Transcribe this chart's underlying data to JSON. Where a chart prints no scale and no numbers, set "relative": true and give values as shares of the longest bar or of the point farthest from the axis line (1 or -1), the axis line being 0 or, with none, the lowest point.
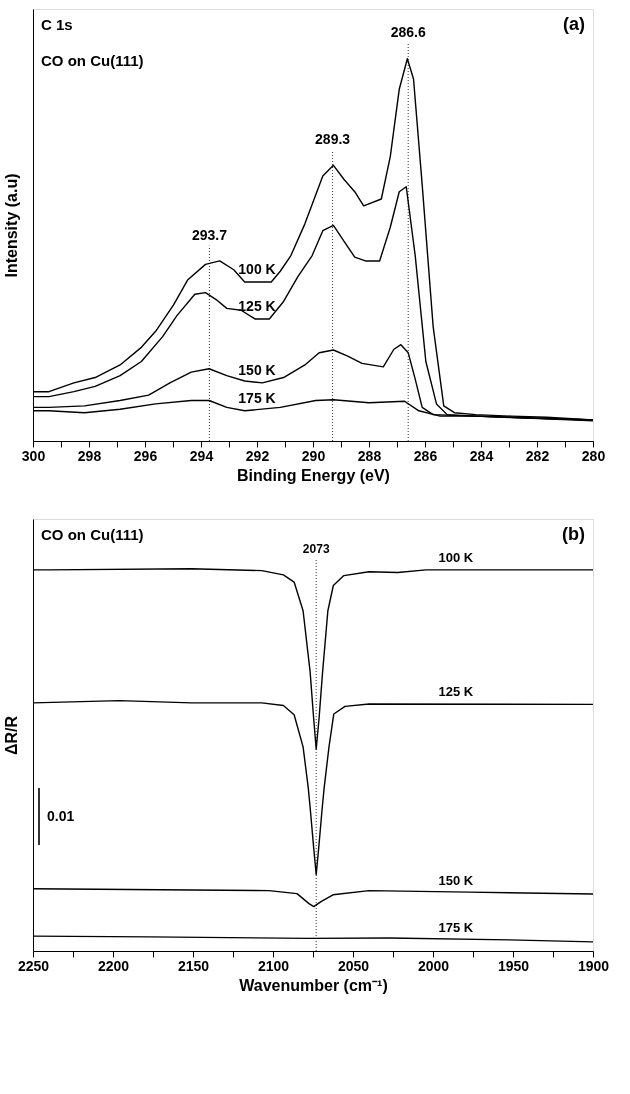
{
  "chart_data": [
    {
      "type": "line",
      "relative": true,
      "xlabel": "Binding Energy (eV)",
      "ylabel": "Intensity (a.u)",
      "tick_labels": "x",
      "xlim": [
        300,
        280
      ],
      "xticks": [
        300,
        {
          "value": 299,
          "label": null
        },
        298,
        {
          "value": 297,
          "label": null
        },
        296,
        {
          "value": 295,
          "label": null
        },
        294,
        {
          "value": 293,
          "label": null
        },
        292,
        {
          "value": 291,
          "label": null
        },
        290,
        {
          "value": 289,
          "label": null
        },
        288,
        {
          "value": 287,
          "label": null
        },
        286,
        {
          "value": 285,
          "label": null
        },
        284,
        {
          "value": 283,
          "label": null
        },
        282,
        {
          "value": 281,
          "label": null
        },
        280
      ],
      "annotations": [
        "C 1s",
        "CO on Cu(111)",
        "(a)"
      ],
      "ref_lines": [
        {
          "axis": "x",
          "value": 293.7,
          "label": "293.7",
          "line_style": "dotted"
        },
        {
          "axis": "x",
          "value": 289.3,
          "label": "289.3",
          "line_style": "dotted"
        },
        {
          "axis": "x",
          "value": 286.6,
          "label": "286.6",
          "line_style": "dotted"
        }
      ],
      "series": [
        {
          "name": "100 K",
          "color": "#000000",
          "x": [
            300,
            299.43,
            298.54,
            297.78,
            296.89,
            296.13,
            295.62,
            294.98,
            294.48,
            293.84,
            293.33,
            292.83,
            292.44,
            291.81,
            291.49,
            291.17,
            290.79,
            290.29,
            289.65,
            289.27,
            288.89,
            288.51,
            288.19,
            287.56,
            287.24,
            286.92,
            286.63,
            286.41,
            286.1,
            285.71,
            285.33,
            284.95,
            284.19,
            282.92,
            281.65,
            280
          ],
          "values": [
            0.129,
            0.129,
            0.152,
            0.166,
            0.199,
            0.245,
            0.287,
            0.356,
            0.421,
            0.462,
            0.471,
            0.448,
            0.416,
            0.416,
            0.416,
            0.444,
            0.485,
            0.568,
            0.693,
            0.721,
            0.684,
            0.652,
            0.615,
            0.633,
            0.744,
            0.92,
            1.0,
            0.947,
            0.67,
            0.3,
            0.092,
            0.074,
            0.069,
            0.065,
            0.062,
            0.055
          ]
        },
        {
          "name": "125 K",
          "color": "#000000",
          "x": [
            300,
            299.43,
            298.54,
            297.78,
            296.89,
            296.13,
            295.37,
            294.86,
            294.22,
            293.84,
            293.46,
            293.08,
            292.57,
            292.06,
            291.56,
            291.05,
            290.54,
            290.03,
            289.65,
            289.27,
            288.89,
            288.51,
            288.13,
            287.62,
            287.24,
            286.92,
            286.67,
            286.35,
            285.97,
            285.59,
            285.21,
            284.19,
            280
          ],
          "values": [
            0.116,
            0.116,
            0.129,
            0.143,
            0.171,
            0.208,
            0.273,
            0.328,
            0.384,
            0.388,
            0.37,
            0.347,
            0.342,
            0.319,
            0.319,
            0.365,
            0.43,
            0.485,
            0.55,
            0.564,
            0.522,
            0.481,
            0.471,
            0.471,
            0.559,
            0.652,
            0.665,
            0.485,
            0.208,
            0.097,
            0.069,
            0.065,
            0.055
          ]
        },
        {
          "name": "150 K",
          "color": "#000000",
          "x": [
            300,
            299.43,
            298.16,
            296.89,
            295.87,
            295.11,
            294.35,
            293.71,
            293.08,
            292.44,
            291.81,
            291.05,
            290.29,
            289.78,
            289.27,
            288.76,
            288.25,
            287.49,
            287.11,
            286.86,
            286.6,
            286.35,
            286.1,
            285.71,
            284.19,
            280
          ],
          "values": [
            0.088,
            0.088,
            0.092,
            0.106,
            0.12,
            0.152,
            0.18,
            0.189,
            0.171,
            0.157,
            0.152,
            0.166,
            0.199,
            0.231,
            0.238,
            0.222,
            0.203,
            0.194,
            0.24,
            0.252,
            0.231,
            0.162,
            0.088,
            0.069,
            0.065,
            0.055
          ]
        },
        {
          "name": "175 K",
          "color": "#000000",
          "x": [
            300,
            299.43,
            298.16,
            296.89,
            295.62,
            294.35,
            293.71,
            293.08,
            292.44,
            291.17,
            289.9,
            289.27,
            288.0,
            286.73,
            286.22,
            285.46,
            284.19,
            280
          ],
          "values": [
            0.079,
            0.079,
            0.074,
            0.083,
            0.097,
            0.106,
            0.106,
            0.088,
            0.079,
            0.088,
            0.106,
            0.108,
            0.1,
            0.104,
            0.079,
            0.065,
            0.065,
            0.053
          ]
        }
      ]
    },
    {
      "type": "line",
      "relative": true,
      "xlabel": "Wavenumber (cm⁻¹)",
      "ylabel": "ΔR/R",
      "tick_labels": "x",
      "xlim": [
        2250,
        1900
      ],
      "xticks": [
        2250,
        {
          "value": 2225,
          "label": null
        },
        2200,
        {
          "value": 2175,
          "label": null
        },
        2150,
        {
          "value": 2125,
          "label": null
        },
        2100,
        {
          "value": 2075,
          "label": null
        },
        2050,
        {
          "value": 2025,
          "label": null
        },
        2000,
        {
          "value": 1975,
          "label": null
        },
        1950,
        {
          "value": 1925,
          "label": null
        },
        1900
      ],
      "annotations": [
        "CO  on Cu(111)",
        "(b)",
        "0.01"
      ],
      "ref_lines": [
        {
          "axis": "x",
          "value": 2073,
          "label": "2073",
          "line_style": "dotted"
        }
      ],
      "series": [
        {
          "name": "100 K",
          "color": "#000000",
          "x": [
            2250,
            2240,
            2151,
            2107,
            2093.5,
            2086.8,
            2081.2,
            2076.8,
            2074.6,
            2073,
            2071.2,
            2069,
            2065.7,
            2062.3,
            2055.7,
            2040,
            2022,
            2004.5,
            1900
          ],
          "values": [
            0.997,
            0.997,
            1.0,
            0.995,
            0.984,
            0.965,
            0.89,
            0.73,
            0.609,
            0.528,
            0.609,
            0.73,
            0.89,
            0.956,
            0.982,
            0.992,
            0.99,
            0.997,
            0.997
          ]
        },
        {
          "name": "125 K",
          "color": "#000000",
          "x": [
            2250,
            2196,
            2151,
            2107,
            2093.5,
            2086.8,
            2081.2,
            2078,
            2076.8,
            2074.6,
            2073,
            2071.4,
            2069.2,
            2068,
            2065,
            2062,
            2055,
            2040,
            1900
          ],
          "values": [
            0.649,
            0.655,
            0.649,
            0.649,
            0.642,
            0.618,
            0.534,
            0.428,
            0.376,
            0.271,
            0.2,
            0.271,
            0.376,
            0.428,
            0.534,
            0.62,
            0.64,
            0.646,
            0.645
          ]
        },
        {
          "name": "150 K",
          "color": "#000000",
          "x": [
            2250,
            2102.5,
            2085,
            2077.5,
            2074.5,
            2070,
            2062.5,
            2040,
            1977.5,
            1900
          ],
          "values": [
            0.163,
            0.158,
            0.15,
            0.124,
            0.116,
            0.129,
            0.147,
            0.158,
            0.154,
            0.149
          ]
        },
        {
          "name": "175 K",
          "color": "#000000",
          "x": [
            2250,
            2177.5,
            2077.5,
            2027.5,
            1952.5,
            1900
          ],
          "values": [
            0.039,
            0.037,
            0.033,
            0.034,
            0.029,
            0.024
          ]
        }
      ]
    }
  ]
}
